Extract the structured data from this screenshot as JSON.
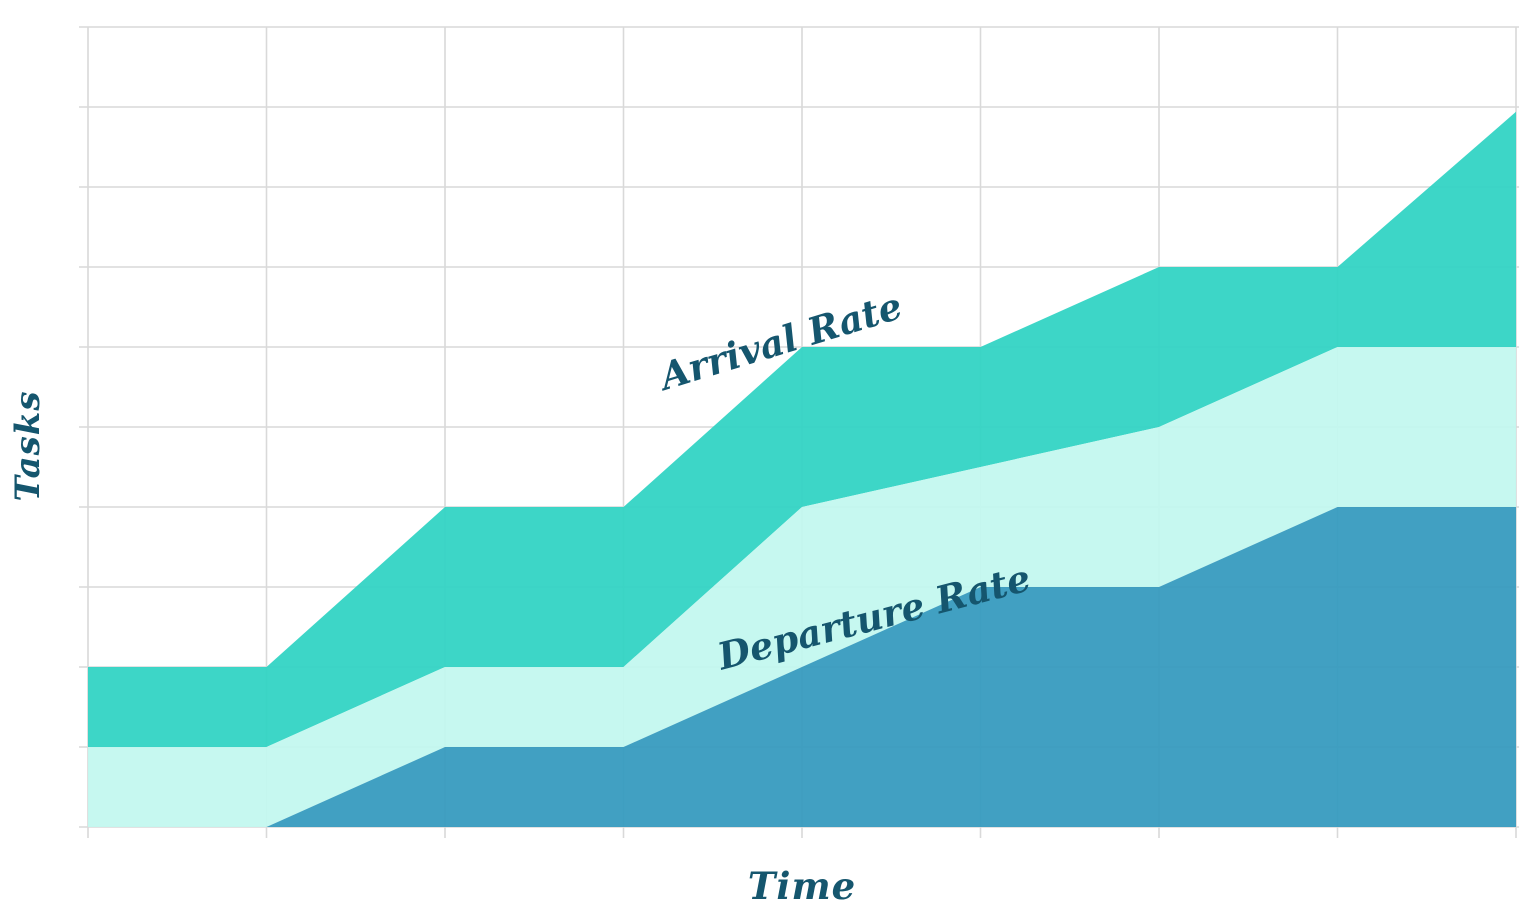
{
  "chart_data": {
    "type": "area",
    "title": "",
    "xlabel": "Time",
    "ylabel": "Tasks",
    "xlim": [
      0,
      8
    ],
    "ylim": [
      0,
      10
    ],
    "grid": true,
    "x_gridlines": 9,
    "y_gridlines": 11,
    "tick_labels_shown": false,
    "legend": "none",
    "palette": {
      "background": "#ffffff",
      "grid": "#d9d9d9",
      "queued_fill": "#2ed3c3",
      "in_progress_fill": "#c2f7ef",
      "completed_fill": "#3399bd",
      "dotted_line": "#144f63",
      "label_text": "#15566e"
    },
    "boundaries": [
      {
        "name": "arrival-curve",
        "x": [
          0,
          1,
          2,
          3,
          4,
          5,
          6,
          7,
          8
        ],
        "y": [
          2,
          2,
          4,
          4,
          6,
          6,
          7,
          7,
          8.94
        ]
      },
      {
        "name": "service-boundary",
        "x": [
          0,
          1,
          2,
          3,
          4,
          6,
          7,
          8
        ],
        "y": [
          1,
          1,
          2,
          2,
          4,
          5,
          6,
          6
        ]
      },
      {
        "name": "departure-curve",
        "x": [
          0,
          1,
          2,
          3,
          5,
          6,
          7,
          8
        ],
        "y": [
          0,
          0,
          1,
          1,
          3,
          3,
          4,
          4
        ]
      }
    ],
    "area_fills": [
      {
        "between": [
          "arrival-curve",
          "service-boundary"
        ],
        "color": "#2ed3c3"
      },
      {
        "between": [
          "service-boundary",
          "departure-curve"
        ],
        "color": "#c2f7ef"
      },
      {
        "between": [
          "departure-curve",
          "baseline"
        ],
        "color": "#3399bd"
      }
    ],
    "annotations": [
      {
        "label": "Arrival Rate",
        "style": "dotted",
        "line": {
          "from": [
            0,
            2
          ],
          "to": [
            7.98,
            8.96
          ]
        }
      },
      {
        "label": "Departure Rate",
        "style": "dotted",
        "line": {
          "from": [
            1,
            0
          ],
          "to": [
            7.98,
            4
          ]
        }
      }
    ]
  }
}
